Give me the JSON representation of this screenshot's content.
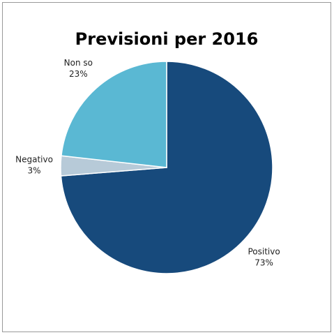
{
  "chart_data": {
    "type": "pie",
    "title": "Previsioni per 2016",
    "categories": [
      "Positivo",
      "Negativo",
      "Non so"
    ],
    "values": [
      73,
      3,
      23
    ],
    "value_labels": [
      "73%",
      "3%",
      "23%"
    ],
    "colors": [
      "#174a7c",
      "#b7cad8",
      "#5ab8d3"
    ]
  }
}
